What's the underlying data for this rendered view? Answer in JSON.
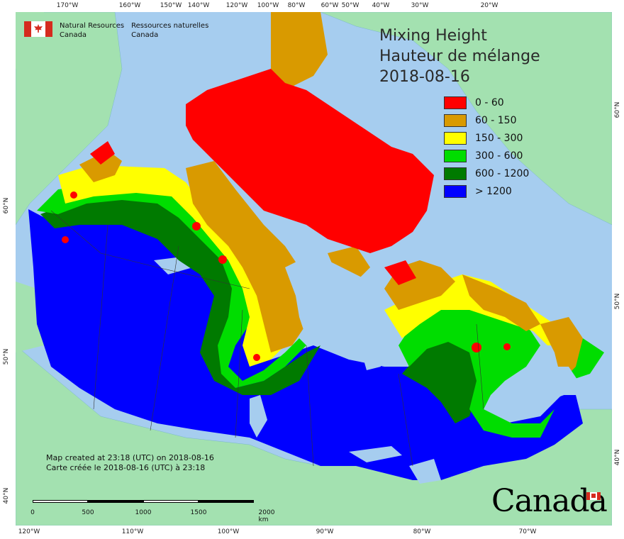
{
  "title": {
    "line1": "Mixing Height",
    "line2": "Hauteur de mélange",
    "date": "2018-08-16"
  },
  "agency": {
    "en_line1": "Natural Resources",
    "en_line2": "Canada",
    "fr_line1": "Ressources naturelles",
    "fr_line2": "Canada"
  },
  "legend": [
    {
      "label": "0 - 60",
      "color": "#ff0000"
    },
    {
      "label": "60 - 150",
      "color": "#d99a00"
    },
    {
      "label": "150 - 300",
      "color": "#ffff00"
    },
    {
      "label": "300 - 600",
      "color": "#00dd00"
    },
    {
      "label": "600 - 1200",
      "color": "#007a00"
    },
    {
      "label": "> 1200",
      "color": "#0000ff"
    }
  ],
  "credits": {
    "line_en": "Map created at 23:18 (UTC) on 2018-08-16",
    "line_fr": "Carte créée le 2018-08-16 (UTC) à 23:18"
  },
  "scale": {
    "labels": [
      "0",
      "500",
      "1000",
      "1500",
      "2000 km"
    ]
  },
  "wordmark": "Canada",
  "ticks": {
    "top": [
      "170°W",
      "160°W",
      "150°W",
      "140°W",
      "120°W",
      "100°W",
      "80°W",
      "60°W",
      "50°W",
      "40°W",
      "30°W",
      "20°W"
    ],
    "bottom": [
      "120°W",
      "110°W",
      "100°W",
      "90°W",
      "80°W",
      "70°W"
    ],
    "left": [
      "60°N",
      "50°N",
      "40°N"
    ],
    "right": [
      "60°N",
      "50°N",
      "40°N"
    ]
  },
  "colors": {
    "ocean": "#a6cdef",
    "land_outside": "#a3e1b0"
  }
}
